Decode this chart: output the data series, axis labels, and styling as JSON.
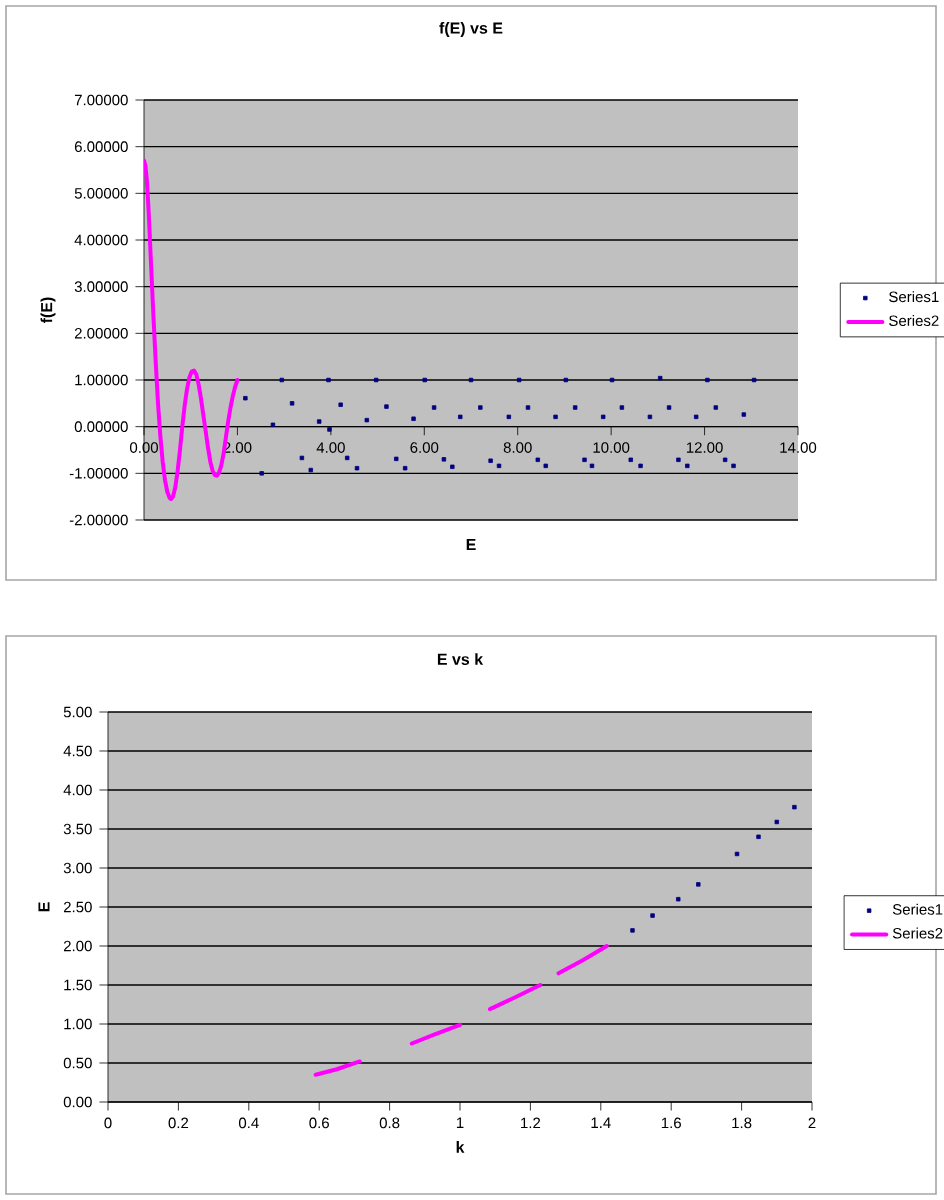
{
  "chart_data": [
    {
      "type": "scatter",
      "title": "f(E) vs E",
      "xlabel": "E",
      "ylabel": "f(E)",
      "xlim": [
        0,
        14
      ],
      "ylim": [
        -2,
        7
      ],
      "xticks": [
        {
          "value": 0,
          "label": "0.00"
        },
        {
          "value": 2,
          "label": "2.00"
        },
        {
          "value": 4,
          "label": "4.00"
        },
        {
          "value": 6,
          "label": "6.00"
        },
        {
          "value": 8,
          "label": "8.00"
        },
        {
          "value": 10,
          "label": "10.00"
        },
        {
          "value": 12,
          "label": "12.00"
        },
        {
          "value": 14,
          "label": "14.00"
        }
      ],
      "yticks": [
        {
          "value": -2,
          "label": "-2.00000"
        },
        {
          "value": -1,
          "label": "-1.00000"
        },
        {
          "value": 0,
          "label": "0.00000"
        },
        {
          "value": 1,
          "label": "1.00000"
        },
        {
          "value": 2,
          "label": "2.00000"
        },
        {
          "value": 3,
          "label": "3.00000"
        },
        {
          "value": 4,
          "label": "4.00000"
        },
        {
          "value": 5,
          "label": "5.00000"
        },
        {
          "value": 6,
          "label": "6.00000"
        },
        {
          "value": 7,
          "label": "7.00000"
        }
      ],
      "grid": "y",
      "legend": "right",
      "series": [
        {
          "name": "Series1",
          "color": "#000080",
          "marker": "square",
          "x": [
            2.17,
            2.52,
            2.76,
            2.95,
            3.17,
            3.38,
            3.57,
            3.75,
            3.95,
            3.97,
            4.21,
            4.35,
            4.56,
            4.77,
            4.97,
            5.19,
            5.4,
            5.59,
            5.77,
            6.01,
            6.21,
            6.42,
            6.6,
            6.77,
            7.0,
            7.2,
            7.42,
            7.6,
            7.81,
            8.03,
            8.22,
            8.43,
            8.6,
            8.81,
            9.03,
            9.23,
            9.43,
            9.59,
            9.83,
            10.02,
            10.23,
            10.42,
            10.63,
            10.83,
            11.05,
            11.24,
            11.44,
            11.63,
            11.82,
            12.06,
            12.24,
            12.44,
            12.62,
            12.84,
            13.06
          ],
          "values": [
            0.61,
            -1.0,
            0.04,
            1.0,
            0.5,
            -0.67,
            -0.93,
            0.11,
            1.0,
            -0.06,
            0.47,
            -0.67,
            -0.89,
            0.14,
            1.0,
            0.43,
            -0.69,
            -0.89,
            0.17,
            1.0,
            0.41,
            -0.7,
            -0.86,
            0.21,
            1.0,
            0.41,
            -0.73,
            -0.84,
            0.21,
            1.0,
            0.41,
            -0.71,
            -0.84,
            0.21,
            1.0,
            0.41,
            -0.71,
            -0.84,
            0.21,
            1.0,
            0.41,
            -0.71,
            -0.84,
            0.21,
            1.04,
            0.41,
            -0.71,
            -0.84,
            0.21,
            1.0,
            0.41,
            -0.71,
            -0.84,
            0.26,
            1.0
          ]
        },
        {
          "name": "Series2",
          "color": "#ff00ff",
          "type": "line",
          "x": [
            0.0,
            0.03,
            0.06,
            0.1,
            0.15,
            0.2,
            0.25,
            0.3,
            0.35,
            0.4,
            0.45,
            0.5,
            0.55,
            0.58,
            0.62,
            0.67,
            0.72,
            0.77,
            0.82,
            0.87,
            0.92,
            0.97,
            1.02,
            1.07,
            1.12,
            1.17,
            1.22,
            1.27,
            1.32,
            1.37,
            1.42,
            1.47,
            1.52,
            1.56,
            1.6,
            1.65,
            1.7,
            1.75,
            1.8,
            1.85,
            1.9,
            1.95,
            2.0
          ],
          "values": [
            5.7,
            5.6,
            5.3,
            4.6,
            3.5,
            2.4,
            1.4,
            0.5,
            -0.2,
            -0.75,
            -1.15,
            -1.4,
            -1.53,
            -1.55,
            -1.5,
            -1.3,
            -0.95,
            -0.5,
            0.0,
            0.45,
            0.8,
            1.05,
            1.18,
            1.2,
            1.12,
            0.9,
            0.6,
            0.25,
            -0.1,
            -0.45,
            -0.75,
            -0.95,
            -1.04,
            -1.05,
            -1.0,
            -0.85,
            -0.6,
            -0.25,
            0.1,
            0.4,
            0.65,
            0.85,
            1.0
          ]
        }
      ]
    },
    {
      "type": "scatter",
      "title": "E vs k",
      "xlabel": "k",
      "ylabel": "E",
      "xlim": [
        0,
        2
      ],
      "ylim": [
        0,
        5
      ],
      "xticks": [
        0,
        0.2,
        0.4,
        0.6,
        0.8,
        1,
        1.2,
        1.4,
        1.6,
        1.8,
        2
      ],
      "yticks": [
        {
          "value": 0,
          "label": "0.00"
        },
        {
          "value": 0.5,
          "label": "0.50"
        },
        {
          "value": 1,
          "label": "1.00"
        },
        {
          "value": 1.5,
          "label": "1.50"
        },
        {
          "value": 2,
          "label": "2.00"
        },
        {
          "value": 2.5,
          "label": "2.50"
        },
        {
          "value": 3,
          "label": "3.00"
        },
        {
          "value": 3.5,
          "label": "3.50"
        },
        {
          "value": 4,
          "label": "4.00"
        },
        {
          "value": 4.5,
          "label": "4.50"
        },
        {
          "value": 5,
          "label": "5.00"
        }
      ],
      "grid": "y",
      "legend": "right",
      "series": [
        {
          "name": "Series1",
          "color": "#000080",
          "marker": "square",
          "x": [
            1.49,
            1.547,
            1.62,
            1.677,
            1.787,
            1.848,
            1.9,
            1.95
          ],
          "values": [
            2.2,
            2.39,
            2.6,
            2.79,
            3.18,
            3.4,
            3.59,
            3.78
          ]
        },
        {
          "name": "Series2",
          "color": "#ff00ff",
          "type": "line",
          "x": [
            0.59,
            0.65,
            0.715,
            0.8,
            0.863,
            0.93,
            1.0,
            1.05,
            1.085,
            1.16,
            1.228,
            1.25,
            1.28,
            1.35,
            1.417
          ],
          "values": [
            0.35,
            0.42,
            0.52,
            null,
            0.75,
            0.87,
            0.99,
            null,
            1.19,
            1.35,
            1.5,
            null,
            1.65,
            1.82,
            2.0
          ]
        }
      ]
    }
  ]
}
